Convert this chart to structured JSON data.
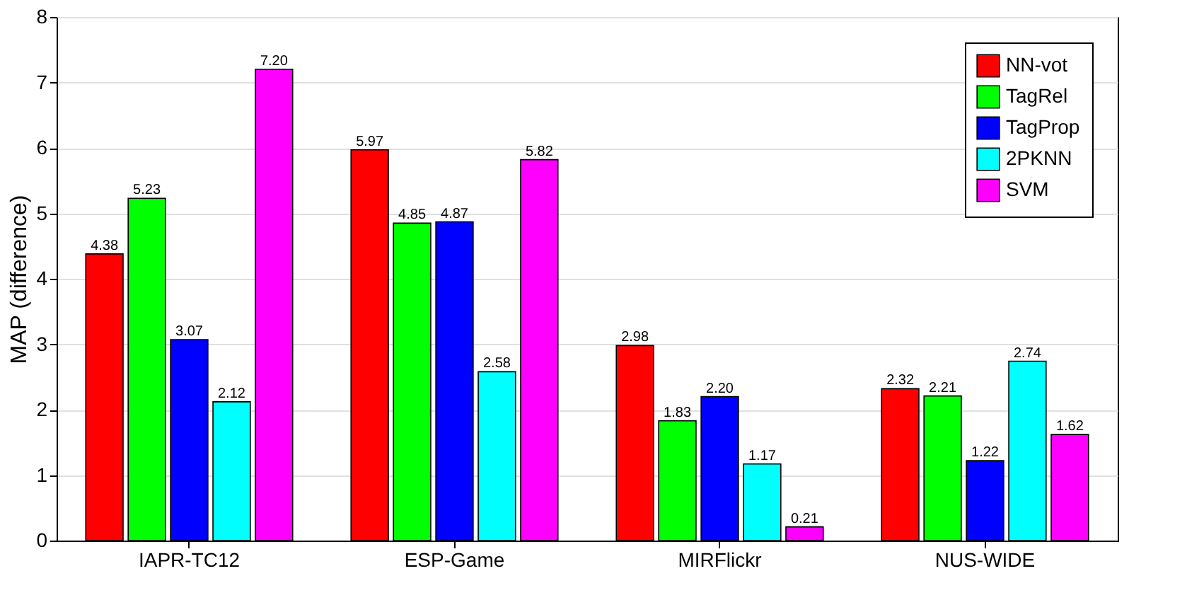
{
  "chart_data": {
    "type": "bar",
    "ylabel": "MAP (difference)",
    "categories": [
      "IAPR-TC12",
      "ESP-Game",
      "MIRFlickr",
      "NUS-WIDE"
    ],
    "series": [
      {
        "name": "NN-vot",
        "color": "#ff0000",
        "values": [
          4.38,
          5.97,
          2.98,
          2.32
        ],
        "value_labels": [
          "4.38",
          "5.97",
          "2.98",
          "2.32"
        ]
      },
      {
        "name": "TagRel",
        "color": "#00ff00",
        "values": [
          5.23,
          4.85,
          1.83,
          2.21
        ],
        "value_labels": [
          "5.23",
          "4.85",
          "1.83",
          "2.21"
        ]
      },
      {
        "name": "TagProp",
        "color": "#0000ff",
        "values": [
          3.07,
          4.87,
          2.2,
          1.22
        ],
        "value_labels": [
          "3.07",
          "4.87",
          "2.20",
          "1.22"
        ]
      },
      {
        "name": "2PKNN",
        "color": "#00ffff",
        "values": [
          2.12,
          2.58,
          1.17,
          2.74
        ],
        "value_labels": [
          "2.12",
          "2.58",
          "1.17",
          "2.74"
        ]
      },
      {
        "name": "SVM",
        "color": "#ff00ff",
        "values": [
          7.2,
          5.82,
          0.21,
          1.62
        ],
        "value_labels": [
          "7.20",
          "5.82",
          "0.21",
          "1.62"
        ]
      }
    ],
    "ylim": [
      0,
      8
    ],
    "yticks": [
      0,
      1,
      2,
      3,
      4,
      5,
      6,
      7,
      8
    ],
    "grid": "y",
    "legend": "top right"
  }
}
